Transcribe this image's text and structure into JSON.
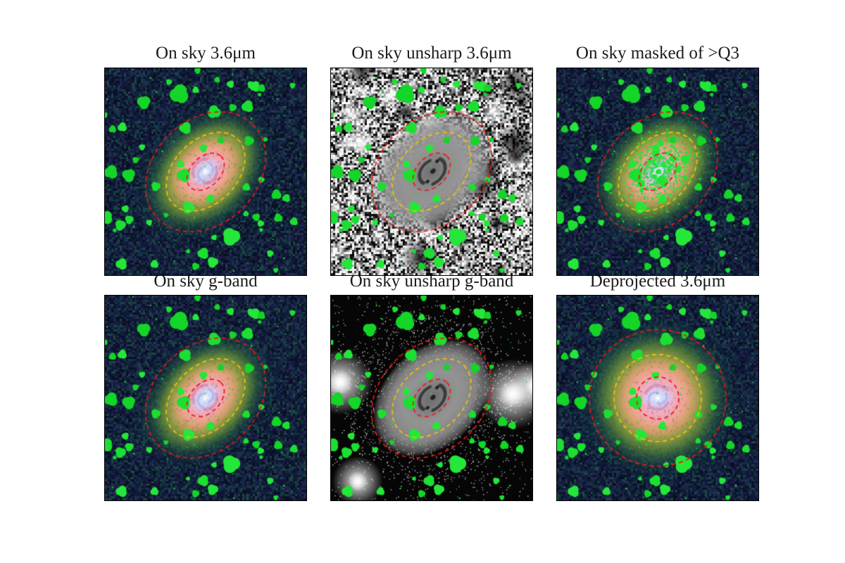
{
  "figure": {
    "kind": "astronomy-multi-panel-figure",
    "background_color": "#ffffff",
    "title_color": "#1a1a1a",
    "panels": [
      {
        "id": "on-sky-36um",
        "title": "On sky 3.6μm",
        "type": "ir",
        "row": 0,
        "col": 0
      },
      {
        "id": "on-sky-unsharp-36um",
        "title": "On sky unsharp 3.6μm",
        "type": "unsharp_bright",
        "row": 0,
        "col": 1
      },
      {
        "id": "on-sky-masked-q3",
        "title": "On sky masked of >Q3",
        "type": "ir_masked",
        "row": 0,
        "col": 2
      },
      {
        "id": "on-sky-g-band",
        "title": "On sky g-band",
        "type": "gband",
        "row": 1,
        "col": 0
      },
      {
        "id": "on-sky-unsharp-g-band",
        "title": "On sky unsharp g-band",
        "type": "unsharp_dark",
        "row": 1,
        "col": 1
      },
      {
        "id": "deprojected-36um",
        "title": "Deprojected 3.6μm",
        "type": "ir_deprojected",
        "row": 1,
        "col": 2
      }
    ],
    "annotations": {
      "sky": {
        "rotation_deg": -45,
        "rings": [
          {
            "name": "inner-red",
            "color": "#f01515",
            "a": 31,
            "b": 21
          },
          {
            "name": "middle-yellow",
            "color": "#f5c400",
            "a": 65,
            "b": 45
          },
          {
            "name": "outer-red",
            "color": "#f01515",
            "a": 95,
            "b": 74
          }
        ]
      },
      "deprojected": {
        "rotation_deg": 0,
        "rings": [
          {
            "name": "inner-red",
            "color": "#f01515",
            "a": 30,
            "b": 30
          },
          {
            "name": "middle-yellow",
            "color": "#f5c400",
            "a": 62,
            "b": 62
          },
          {
            "name": "outer-red",
            "color": "#f01515",
            "a": 97,
            "b": 97
          }
        ]
      }
    },
    "colors": {
      "mask_green": "#1cdf31",
      "ring_red": "#f01515",
      "ring_yellow": "#f5c400",
      "sky_background": "#0c1230",
      "unsharp_gray": "#949494"
    },
    "bright_stars_unsharp_g": [
      [
        13,
        123,
        26
      ],
      [
        258,
        140,
        28
      ],
      [
        290,
        128,
        20
      ],
      [
        38,
        264,
        20
      ],
      [
        112,
        143,
        13
      ]
    ]
  }
}
